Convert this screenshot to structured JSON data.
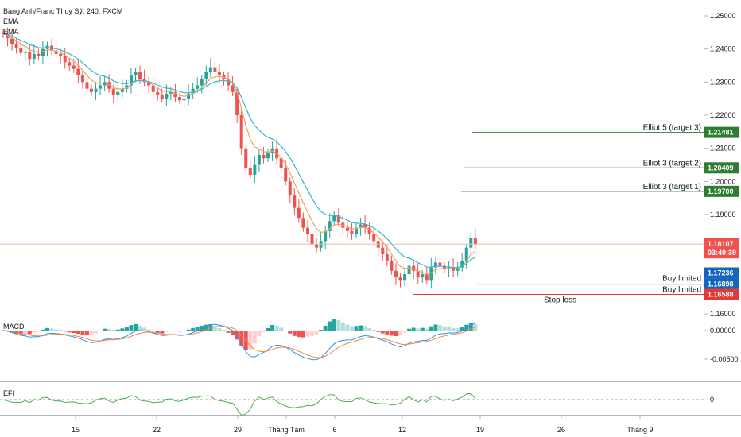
{
  "header": {
    "title": "Bảng Anh/Franc Thuỵ Sỹ, 240, FXCM",
    "ema1": "EMA",
    "ema2": "EMA"
  },
  "panes": {
    "macd_label": "MACD",
    "efi_label": "EFI"
  },
  "colors": {
    "up": "#26a69a",
    "down": "#ef5350",
    "ema_fast": "#f5a05c",
    "ema_slow": "#33b8d1",
    "target": "#2e7d32",
    "buy": "#1565c0",
    "stop": "#e53935",
    "last": "#ef5350",
    "macd": "#2196f3",
    "signal": "#ff7f3f",
    "efi": "#4caf50"
  },
  "chart_data": {
    "type": "candlestick",
    "y_ticks": [
      "1.25000",
      "1.24000",
      "1.23000",
      "1.22000",
      "1.21000",
      "1.20000",
      "1.19000",
      "1.18000",
      "1.17000",
      "1.16000"
    ],
    "y_range": [
      1.16,
      1.255
    ],
    "x_ticks": [
      "15",
      "22",
      "29",
      "Tháng Tám",
      "6",
      "12",
      "19",
      "26",
      "Tháng 9"
    ],
    "last_price": "1.18107",
    "countdown": "03:40:39",
    "levels": [
      {
        "label": "Elliot 5 (target 3)",
        "value": "1.21481",
        "kind": "target"
      },
      {
        "label": "Elliot 3 (target 2)",
        "value": "1.20409",
        "kind": "target"
      },
      {
        "label": "Elliot 3 (target 1)",
        "value": "1.19700",
        "kind": "target"
      },
      {
        "label": "Buy limited",
        "value": "1.17236",
        "kind": "buy"
      },
      {
        "label": "Buy limited",
        "value": "1.16898",
        "kind": "buy"
      },
      {
        "label": "Stop loss",
        "value": "1.16588",
        "kind": "stop"
      }
    ],
    "close": [
      1.2445,
      1.2432,
      1.2415,
      1.2402,
      1.2388,
      1.2392,
      1.237,
      1.2385,
      1.2378,
      1.24,
      1.241,
      1.2395,
      1.2385,
      1.238,
      1.236,
      1.235,
      1.234,
      1.232,
      1.23,
      1.228,
      1.227,
      1.228,
      1.229,
      1.23,
      1.228,
      1.226,
      1.227,
      1.228,
      1.229,
      1.232,
      1.233,
      1.231,
      1.23,
      1.229,
      1.227,
      1.226,
      1.225,
      1.2265,
      1.227,
      1.2255,
      1.2245,
      1.225,
      1.2265,
      1.228,
      1.229,
      1.231,
      1.233,
      1.2345,
      1.233,
      1.232,
      1.231,
      1.229,
      1.227,
      1.22,
      1.21,
      1.204,
      1.202,
      1.205,
      1.208,
      1.207,
      1.2085,
      1.21,
      1.207,
      1.204,
      1.2,
      1.196,
      1.192,
      1.189,
      1.186,
      1.184,
      1.181,
      1.18,
      1.182,
      1.185,
      1.188,
      1.19,
      1.1875,
      1.186,
      1.185,
      1.184,
      1.186,
      1.187,
      1.186,
      1.184,
      1.182,
      1.18,
      1.178,
      1.176,
      1.173,
      1.171,
      1.17,
      1.172,
      1.1745,
      1.173,
      1.171,
      1.172,
      1.17,
      1.174,
      1.1755,
      1.1745,
      1.1735,
      1.174,
      1.173,
      1.174,
      1.176,
      1.18,
      1.183,
      1.1811
    ],
    "macd_ticks": [
      "0.00000",
      "-0.00500"
    ],
    "efi_ticks": [
      "0"
    ]
  }
}
